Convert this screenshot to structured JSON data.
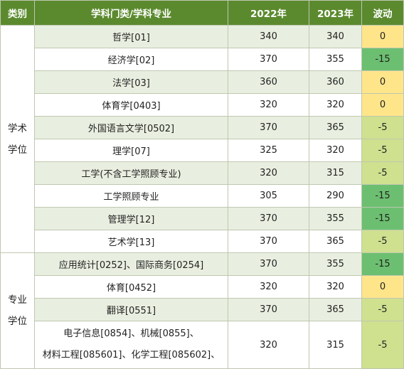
{
  "header": {
    "col1": "类别",
    "col2": "学科门类/学科专业",
    "col3": "2022年",
    "col4": "2023年",
    "col5": "波动"
  },
  "groups": [
    {
      "category_line1": "学术",
      "category_line2": "学位",
      "rows": [
        {
          "subject": "哲学[01]",
          "y2022": "340",
          "y2023": "340",
          "change": "0"
        },
        {
          "subject": "经济学[02]",
          "y2022": "370",
          "y2023": "355",
          "change": "-15"
        },
        {
          "subject": "法学[03]",
          "y2022": "360",
          "y2023": "360",
          "change": "0"
        },
        {
          "subject": "体育学[0403]",
          "y2022": "320",
          "y2023": "320",
          "change": "0"
        },
        {
          "subject": "外国语言文学[0502]",
          "y2022": "370",
          "y2023": "365",
          "change": "-5"
        },
        {
          "subject": "理学[07]",
          "y2022": "325",
          "y2023": "320",
          "change": "-5"
        },
        {
          "subject": "工学(不含工学照顾专业)",
          "y2022": "320",
          "y2023": "315",
          "change": "-5"
        },
        {
          "subject": "工学照顾专业",
          "y2022": "305",
          "y2023": "290",
          "change": "-15"
        },
        {
          "subject": "管理学[12]",
          "y2022": "370",
          "y2023": "355",
          "change": "-15"
        },
        {
          "subject": "艺术学[13]",
          "y2022": "370",
          "y2023": "365",
          "change": "-5"
        }
      ]
    },
    {
      "category_line1": "专业",
      "category_line2": "学位",
      "rows": [
        {
          "subject": "应用统计[0252]、国际商务[0254]",
          "y2022": "370",
          "y2023": "355",
          "change": "-15"
        },
        {
          "subject": "体育[0452]",
          "y2022": "320",
          "y2023": "320",
          "change": "0"
        },
        {
          "subject": "翻译[0551]",
          "y2022": "370",
          "y2023": "365",
          "change": "-5"
        },
        {
          "subject_line1": "电子信息[0854]、机械[0855]、",
          "subject_line2": "材料工程[085601]、化学工程[085602]、",
          "y2022": "320",
          "y2023": "315",
          "change": "-5"
        }
      ]
    }
  ],
  "colors": {
    "header_bg": "#5b8a2e",
    "row_alt_bg": "#e9efe0",
    "change_zero": "#ffe58a",
    "change_minus5": "#cfe08f",
    "change_minus15": "#6cbf70"
  }
}
